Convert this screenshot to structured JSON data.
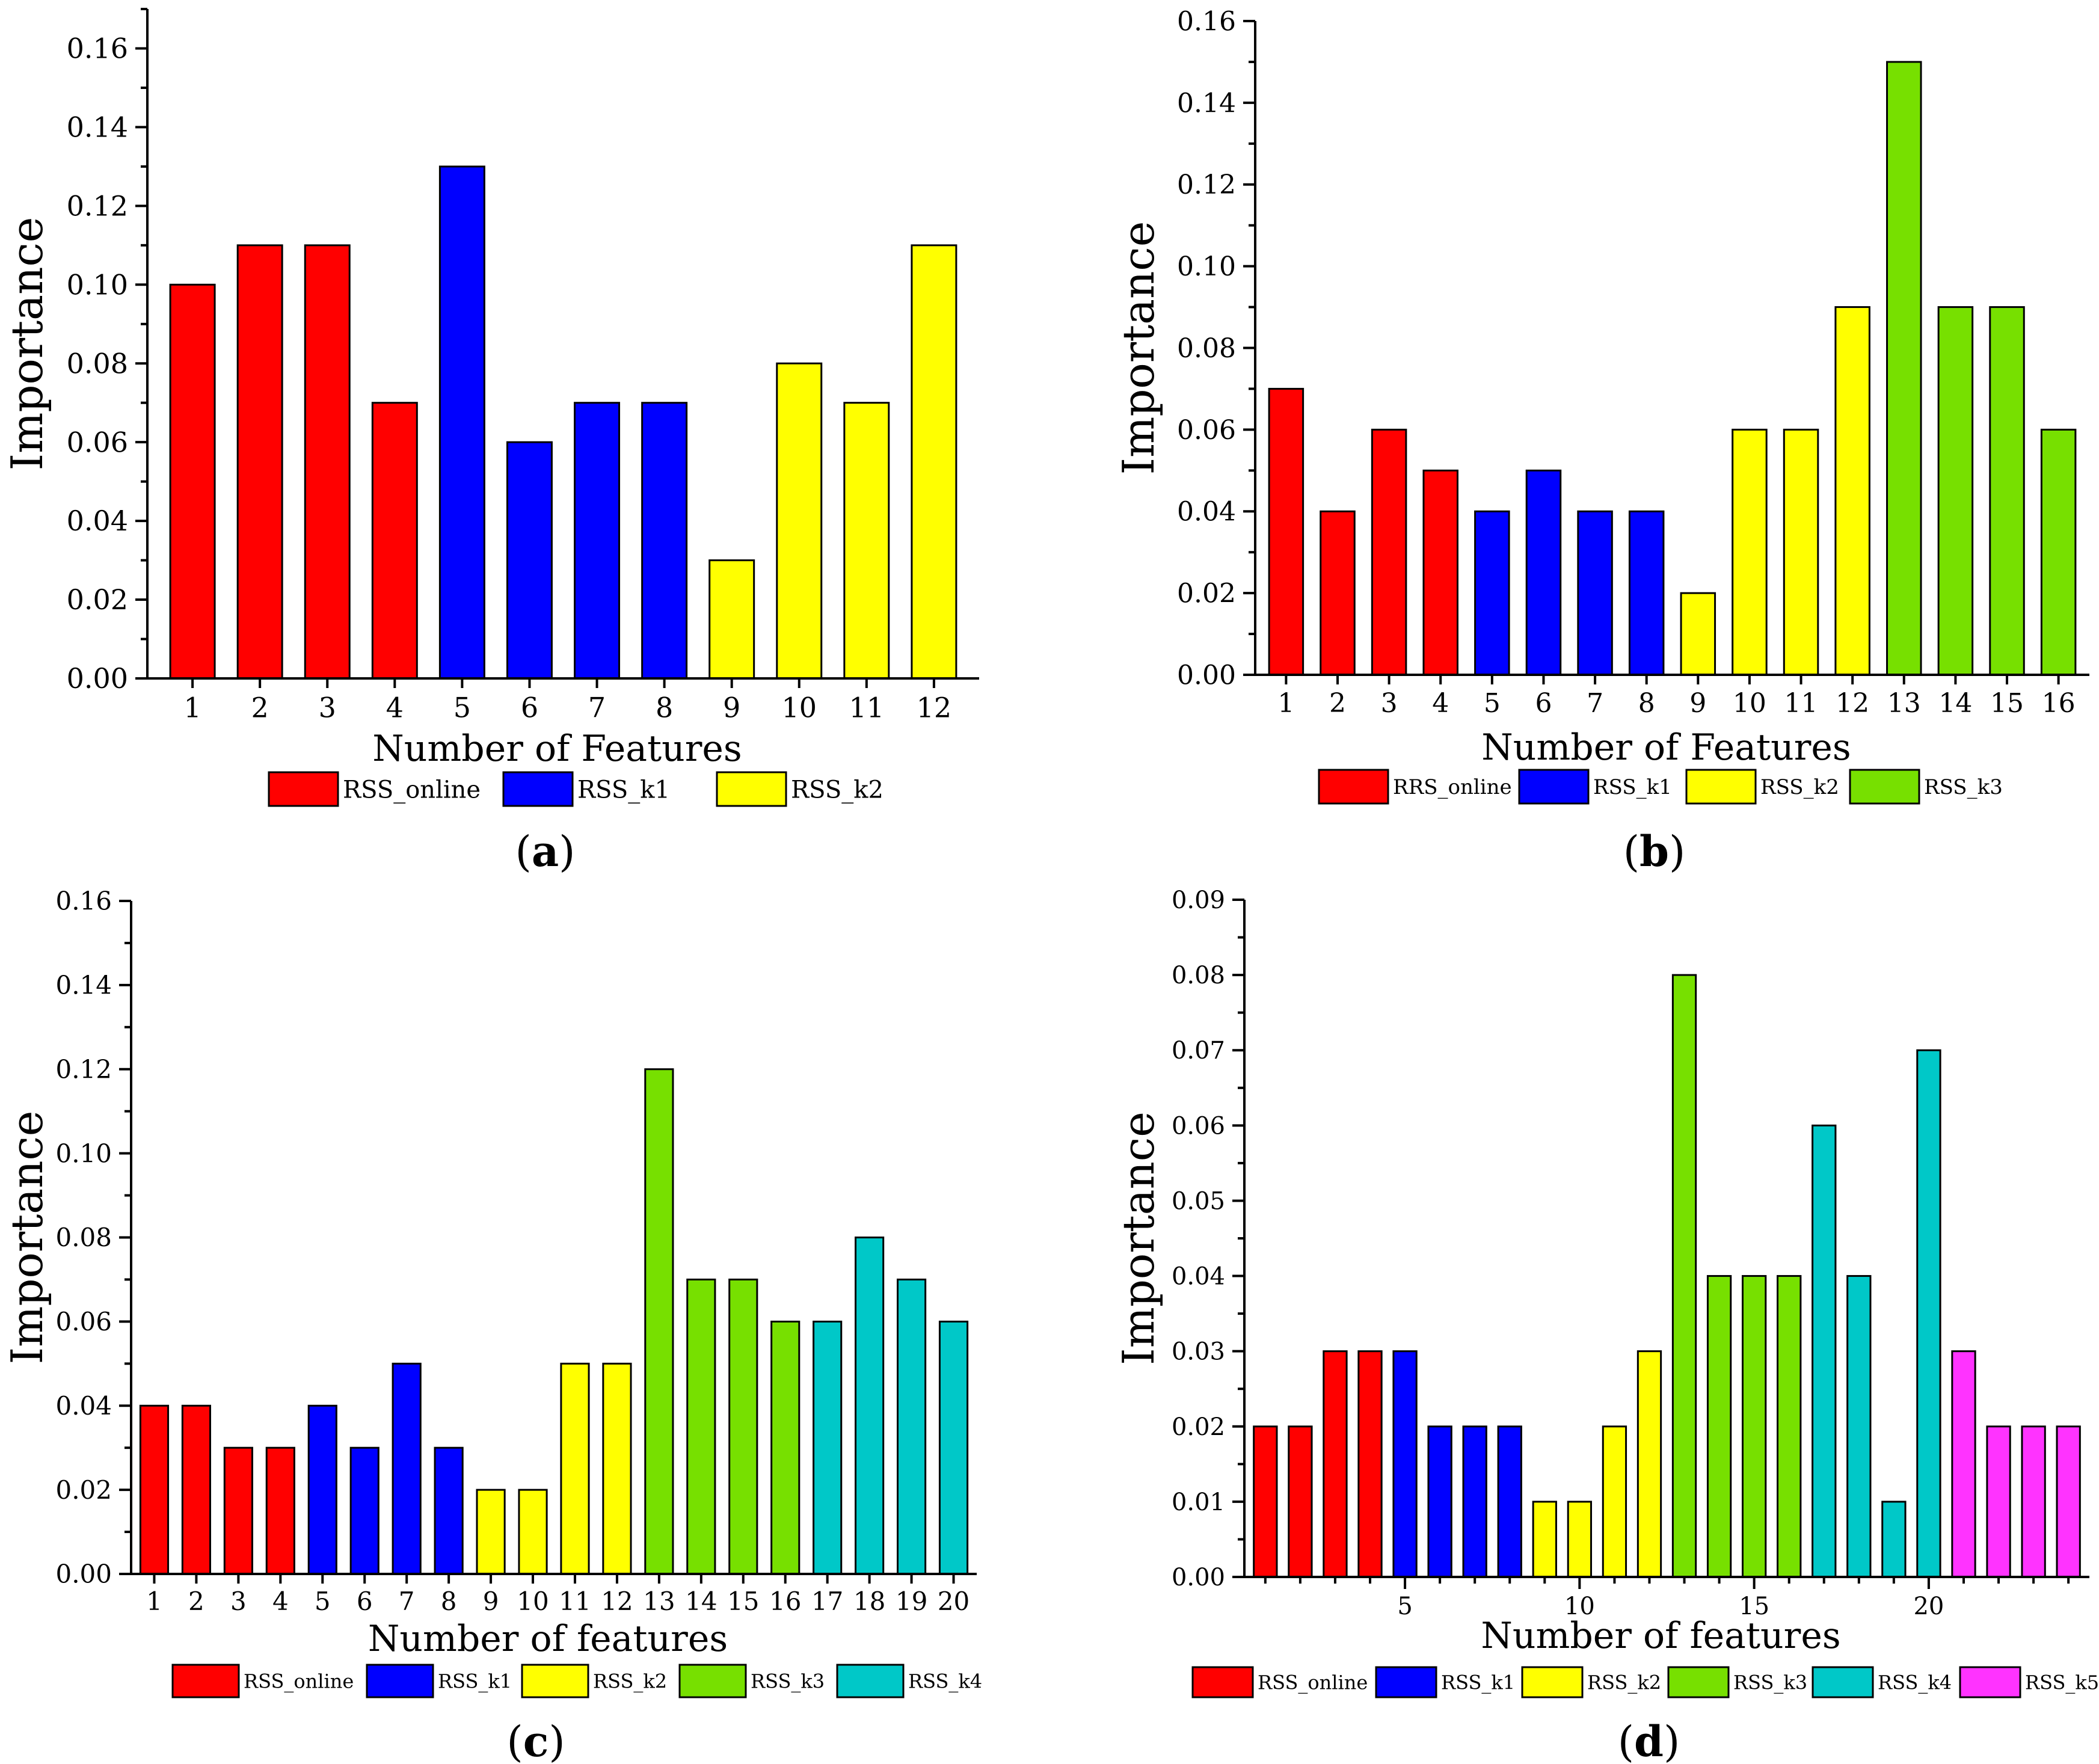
{
  "colors": {
    "RSS_online": "#ff0000",
    "RSS_k1": "#0000ff",
    "RSS_k2": "#ffff00",
    "RSS_k3": "#77e000",
    "RSS_k4": "#00c8c8",
    "RSS_k5": "#ff33ff"
  },
  "chart_data": [
    {
      "type": "bar",
      "panel_label": "a",
      "xlabel": "Number of Features",
      "ylabel": "Importance",
      "ylim": [
        0,
        0.17
      ],
      "yticks": [
        "0.00",
        "0.02",
        "0.04",
        "0.06",
        "0.08",
        "0.10",
        "0.12",
        "0.14",
        "0.16"
      ],
      "xticks": [
        "1",
        "2",
        "3",
        "4",
        "5",
        "6",
        "7",
        "8",
        "9",
        "10",
        "11",
        "12"
      ],
      "x": [
        1,
        2,
        3,
        4,
        5,
        6,
        7,
        8,
        9,
        10,
        11,
        12
      ],
      "values": [
        0.1,
        0.11,
        0.11,
        0.07,
        0.13,
        0.06,
        0.07,
        0.07,
        0.03,
        0.08,
        0.07,
        0.11
      ],
      "groups": [
        "RSS_online",
        "RSS_online",
        "RSS_online",
        "RSS_online",
        "RSS_k1",
        "RSS_k1",
        "RSS_k1",
        "RSS_k1",
        "RSS_k2",
        "RSS_k2",
        "RSS_k2",
        "RSS_k2"
      ],
      "legend": [
        {
          "label": "RSS_online",
          "group": "RSS_online"
        },
        {
          "label": "RSS_k1",
          "group": "RSS_k1"
        },
        {
          "label": "RSS_k2",
          "group": "RSS_k2"
        }
      ],
      "grid": false
    },
    {
      "type": "bar",
      "panel_label": "b",
      "xlabel": "Number of Features",
      "ylabel": "Importance",
      "ylim": [
        0,
        0.16
      ],
      "yticks": [
        "0.00",
        "0.02",
        "0.04",
        "0.06",
        "0.08",
        "0.10",
        "0.12",
        "0.14",
        "0.16"
      ],
      "xticks": [
        "1",
        "2",
        "3",
        "4",
        "5",
        "6",
        "7",
        "8",
        "9",
        "10",
        "11",
        "12",
        "13",
        "14",
        "15",
        "16"
      ],
      "x": [
        1,
        2,
        3,
        4,
        5,
        6,
        7,
        8,
        9,
        10,
        11,
        12,
        13,
        14,
        15,
        16
      ],
      "values": [
        0.07,
        0.04,
        0.06,
        0.05,
        0.04,
        0.05,
        0.04,
        0.04,
        0.02,
        0.06,
        0.06,
        0.09,
        0.15,
        0.09,
        0.09,
        0.06
      ],
      "groups": [
        "RSS_online",
        "RSS_online",
        "RSS_online",
        "RSS_online",
        "RSS_k1",
        "RSS_k1",
        "RSS_k1",
        "RSS_k1",
        "RSS_k2",
        "RSS_k2",
        "RSS_k2",
        "RSS_k2",
        "RSS_k3",
        "RSS_k3",
        "RSS_k3",
        "RSS_k3"
      ],
      "legend": [
        {
          "label": "RRS_online",
          "group": "RSS_online"
        },
        {
          "label": "RSS_k1",
          "group": "RSS_k1"
        },
        {
          "label": "RSS_k2",
          "group": "RSS_k2"
        },
        {
          "label": "RSS_k3",
          "group": "RSS_k3"
        }
      ],
      "grid": false
    },
    {
      "type": "bar",
      "panel_label": "c",
      "xlabel": "Number of features",
      "ylabel": "Importance",
      "ylim": [
        0,
        0.16
      ],
      "yticks": [
        "0.00",
        "0.02",
        "0.04",
        "0.06",
        "0.08",
        "0.10",
        "0.12",
        "0.14",
        "0.16"
      ],
      "xticks": [
        "1",
        "2",
        "3",
        "4",
        "5",
        "6",
        "7",
        "8",
        "9",
        "10",
        "11",
        "12",
        "13",
        "14",
        "15",
        "16",
        "17",
        "18",
        "19",
        "20"
      ],
      "x": [
        1,
        2,
        3,
        4,
        5,
        6,
        7,
        8,
        9,
        10,
        11,
        12,
        13,
        14,
        15,
        16,
        17,
        18,
        19,
        20
      ],
      "values": [
        0.04,
        0.04,
        0.03,
        0.03,
        0.04,
        0.03,
        0.05,
        0.03,
        0.02,
        0.02,
        0.05,
        0.05,
        0.12,
        0.07,
        0.07,
        0.06,
        0.06,
        0.08,
        0.07,
        0.06
      ],
      "groups": [
        "RSS_online",
        "RSS_online",
        "RSS_online",
        "RSS_online",
        "RSS_k1",
        "RSS_k1",
        "RSS_k1",
        "RSS_k1",
        "RSS_k2",
        "RSS_k2",
        "RSS_k2",
        "RSS_k2",
        "RSS_k3",
        "RSS_k3",
        "RSS_k3",
        "RSS_k3",
        "RSS_k4",
        "RSS_k4",
        "RSS_k4",
        "RSS_k4"
      ],
      "legend": [
        {
          "label": "RSS_online",
          "group": "RSS_online"
        },
        {
          "label": "RSS_k1",
          "group": "RSS_k1"
        },
        {
          "label": "RSS_k2",
          "group": "RSS_k2"
        },
        {
          "label": "RSS_k3",
          "group": "RSS_k3"
        },
        {
          "label": "RSS_k4",
          "group": "RSS_k4"
        }
      ],
      "grid": false
    },
    {
      "type": "bar",
      "panel_label": "d",
      "xlabel": "Number of features",
      "ylabel": "Importance",
      "ylim": [
        0,
        0.09
      ],
      "yticks": [
        "0.00",
        "0.01",
        "0.02",
        "0.03",
        "0.04",
        "0.05",
        "0.06",
        "0.07",
        "0.08",
        "0.09"
      ],
      "xticks": [
        "5",
        "10",
        "15",
        "20"
      ],
      "x": [
        1,
        2,
        3,
        4,
        5,
        6,
        7,
        8,
        9,
        10,
        11,
        12,
        13,
        14,
        15,
        16,
        17,
        18,
        19,
        20,
        21,
        22,
        23,
        24
      ],
      "values": [
        0.02,
        0.02,
        0.03,
        0.03,
        0.03,
        0.02,
        0.02,
        0.02,
        0.01,
        0.01,
        0.02,
        0.03,
        0.08,
        0.04,
        0.04,
        0.04,
        0.06,
        0.04,
        0.01,
        0.07,
        0.03,
        0.02,
        0.02,
        0.02
      ],
      "groups": [
        "RSS_online",
        "RSS_online",
        "RSS_online",
        "RSS_online",
        "RSS_k1",
        "RSS_k1",
        "RSS_k1",
        "RSS_k1",
        "RSS_k2",
        "RSS_k2",
        "RSS_k2",
        "RSS_k2",
        "RSS_k3",
        "RSS_k3",
        "RSS_k3",
        "RSS_k3",
        "RSS_k4",
        "RSS_k4",
        "RSS_k4",
        "RSS_k4",
        "RSS_k5",
        "RSS_k5",
        "RSS_k5",
        "RSS_k5"
      ],
      "legend": [
        {
          "label": "RSS_online",
          "group": "RSS_online"
        },
        {
          "label": "RSS_k1",
          "group": "RSS_k1"
        },
        {
          "label": "RSS_k2",
          "group": "RSS_k2"
        },
        {
          "label": "RSS_k3",
          "group": "RSS_k3"
        },
        {
          "label": "RSS_k4",
          "group": "RSS_k4"
        },
        {
          "label": "RSS_k5",
          "group": "RSS_k5"
        }
      ],
      "grid": false
    }
  ]
}
